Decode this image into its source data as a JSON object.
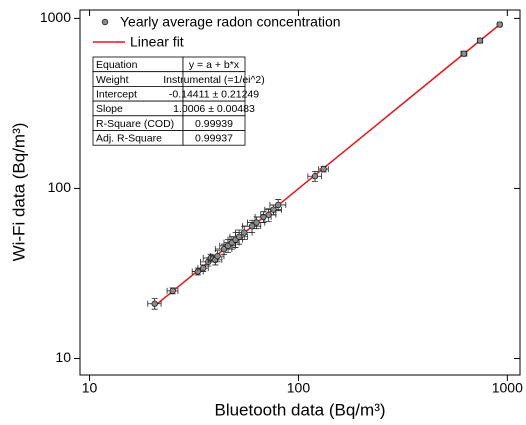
{
  "chart_data": {
    "type": "scatter",
    "log_x": true,
    "log_y": true,
    "xlabel": "Bluetooth data (Bq/m³)",
    "ylabel": "Wi-Fi data (Bq/m³)",
    "xlim": [
      9.0,
      1150
    ],
    "ylim": [
      8.0,
      1120
    ],
    "xticks": [
      10,
      100,
      1000
    ],
    "yticks": [
      10,
      100,
      1000
    ],
    "series": [
      {
        "name": "Yearly average radon concentration",
        "color": "#8c8c8c",
        "x": [
          20.5,
          25,
          33,
          35,
          37,
          38,
          40,
          41,
          44,
          46,
          48,
          50,
          52,
          55,
          60,
          63,
          68,
          72,
          76,
          80,
          120,
          132,
          620,
          740,
          920
        ],
        "values": [
          21,
          25,
          32.5,
          34,
          37,
          39,
          38,
          40,
          44,
          46,
          48,
          50,
          52,
          55,
          60,
          63,
          68,
          70,
          75,
          80,
          118,
          130,
          620,
          740,
          920
        ],
        "x_errors": [
          1.5,
          1.5,
          2,
          2,
          3,
          3,
          3,
          3,
          4,
          4,
          4,
          4,
          5,
          5,
          6,
          6,
          6,
          6,
          7,
          7,
          9,
          7,
          20,
          20,
          20
        ],
        "y_errors": [
          1.5,
          1,
          1.5,
          1.5,
          2,
          2,
          2.5,
          3,
          3,
          4,
          4,
          5,
          5,
          5,
          5,
          5,
          5,
          6,
          5,
          6,
          8,
          5,
          20,
          20,
          20
        ]
      },
      {
        "name": "Linear fit",
        "color": "#e8141c"
      }
    ],
    "fit": {
      "intercept": -0.14411,
      "slope": 1.0006
    },
    "table": [
      [
        "Equation",
        "y = a + b*x"
      ],
      [
        "Weight",
        "Instrumental (=1/ei^2)"
      ],
      [
        "Intercept",
        "-0.14411 ± 0.21249"
      ],
      [
        "Slope",
        "1.0006 ± 0.00483"
      ],
      [
        "R-Square (COD)",
        "0.99939"
      ],
      [
        "Adj. R-Square",
        "0.99937"
      ]
    ]
  }
}
